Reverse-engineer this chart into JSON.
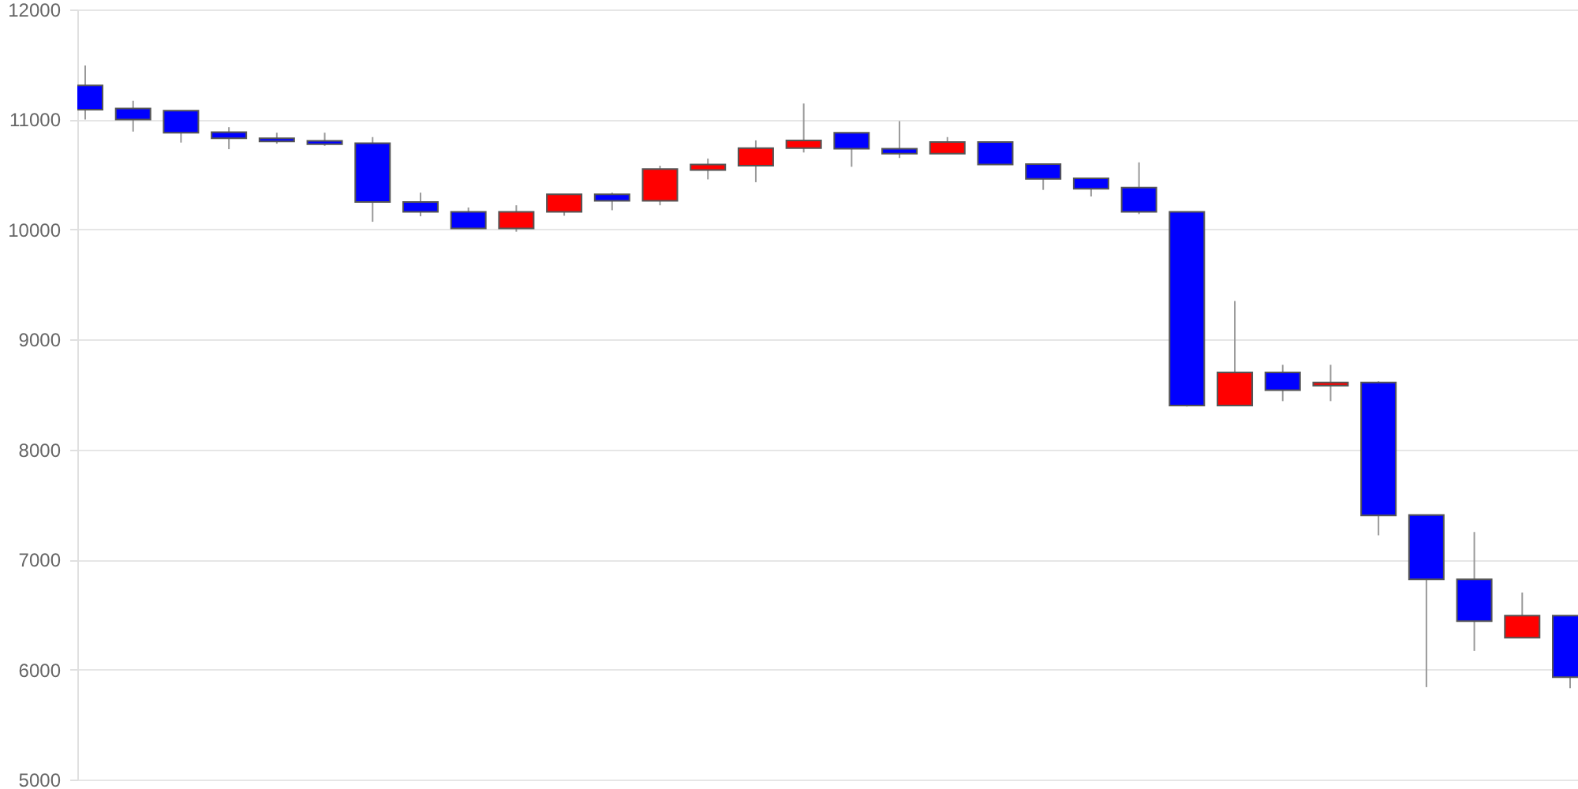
{
  "chart_data": {
    "type": "candlestick",
    "categories": [
      null,
      null,
      null,
      null,
      null,
      null,
      null,
      null,
      null,
      null,
      null,
      null,
      null,
      null,
      null,
      null,
      null,
      null,
      null,
      null,
      null,
      null,
      null,
      null,
      null,
      null,
      null,
      null,
      null,
      null,
      null,
      null
    ],
    "ohlc": [
      [
        11310,
        11490,
        11000,
        11090
      ],
      [
        11100,
        11170,
        10890,
        11000
      ],
      [
        11080,
        11080,
        10790,
        10880
      ],
      [
        10885,
        10930,
        10730,
        10830
      ],
      [
        10830,
        10880,
        10780,
        10800
      ],
      [
        10805,
        10880,
        10760,
        10775
      ],
      [
        10785,
        10840,
        10070,
        10250
      ],
      [
        10250,
        10335,
        10120,
        10160
      ],
      [
        10160,
        10200,
        10010,
        10010
      ],
      [
        10010,
        10220,
        9980,
        10160
      ],
      [
        10160,
        10320,
        10125,
        10320
      ],
      [
        10320,
        10335,
        10175,
        10260
      ],
      [
        10260,
        10580,
        10220,
        10550
      ],
      [
        10540,
        10645,
        10455,
        10590
      ],
      [
        10580,
        10810,
        10430,
        10740
      ],
      [
        10740,
        11145,
        10700,
        10810
      ],
      [
        10880,
        10880,
        10570,
        10735
      ],
      [
        10735,
        10985,
        10650,
        10690
      ],
      [
        10690,
        10840,
        10690,
        10795
      ],
      [
        10795,
        10795,
        10590,
        10590
      ],
      [
        10595,
        10595,
        10360,
        10460
      ],
      [
        10465,
        10465,
        10300,
        10370
      ],
      [
        10380,
        10610,
        10140,
        10160
      ],
      [
        10160,
        10160,
        8390,
        8400
      ],
      [
        8400,
        9350,
        8400,
        8700
      ],
      [
        8700,
        8770,
        8440,
        8540
      ],
      [
        8580,
        8770,
        8440,
        8610
      ],
      [
        8610,
        8620,
        7220,
        7400
      ],
      [
        7405,
        7410,
        5840,
        6820
      ],
      [
        6820,
        7250,
        6170,
        6440
      ],
      [
        6290,
        6700,
        6290,
        6490
      ],
      [
        6490,
        6490,
        5830,
        5930
      ]
    ],
    "colors": [
      "#0000ff",
      "#0000ff",
      "#0000ff",
      "#0000ff",
      "#0000ff",
      "#0000ff",
      "#0000ff",
      "#0000ff",
      "#0000ff",
      "#ff0000",
      "#ff0000",
      "#0000ff",
      "#ff0000",
      "#ff0000",
      "#ff0000",
      "#ff0000",
      "#0000ff",
      "#0000ff",
      "#ff0000",
      "#0000ff",
      "#0000ff",
      "#0000ff",
      "#0000ff",
      "#0000ff",
      "#ff0000",
      "#0000ff",
      "#ff0000",
      "#0000ff",
      "#0000ff",
      "#0000ff",
      "#ff0000",
      "#0000ff"
    ],
    "ylim": [
      5000,
      12000
    ],
    "yticks": [
      5000,
      6000,
      7000,
      8000,
      9000,
      10000,
      11000,
      12000
    ],
    "grid": "y",
    "tick_labels": "y"
  }
}
